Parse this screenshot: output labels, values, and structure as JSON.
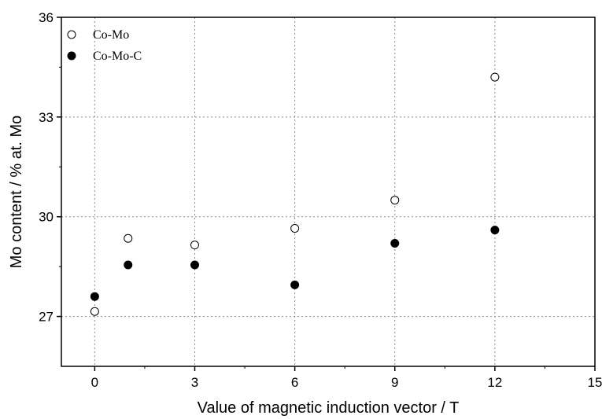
{
  "chart_data": {
    "type": "scatter",
    "xlabel": "Value of magnetic induction vector / T",
    "ylabel": "Mo content / % at. Mo",
    "xlim": [
      -1,
      15
    ],
    "ylim": [
      25.5,
      36
    ],
    "xticks": [
      0,
      3,
      6,
      9,
      12,
      15
    ],
    "yticks": [
      27,
      30,
      33,
      36
    ],
    "grid": true,
    "legend_position": "top-left",
    "series": [
      {
        "name": "Co-Mo",
        "marker": "open-circle",
        "color": "#000000",
        "points": [
          {
            "x": 0,
            "y": 27.15
          },
          {
            "x": 1,
            "y": 29.35
          },
          {
            "x": 3,
            "y": 29.15
          },
          {
            "x": 6,
            "y": 29.65
          },
          {
            "x": 9,
            "y": 30.5
          },
          {
            "x": 12,
            "y": 34.2
          }
        ]
      },
      {
        "name": "Co-Mo-C",
        "marker": "filled-circle",
        "color": "#000000",
        "points": [
          {
            "x": 0,
            "y": 27.6
          },
          {
            "x": 1,
            "y": 28.55
          },
          {
            "x": 3,
            "y": 28.55
          },
          {
            "x": 6,
            "y": 27.95
          },
          {
            "x": 9,
            "y": 29.2
          },
          {
            "x": 12,
            "y": 29.6
          }
        ]
      }
    ]
  }
}
